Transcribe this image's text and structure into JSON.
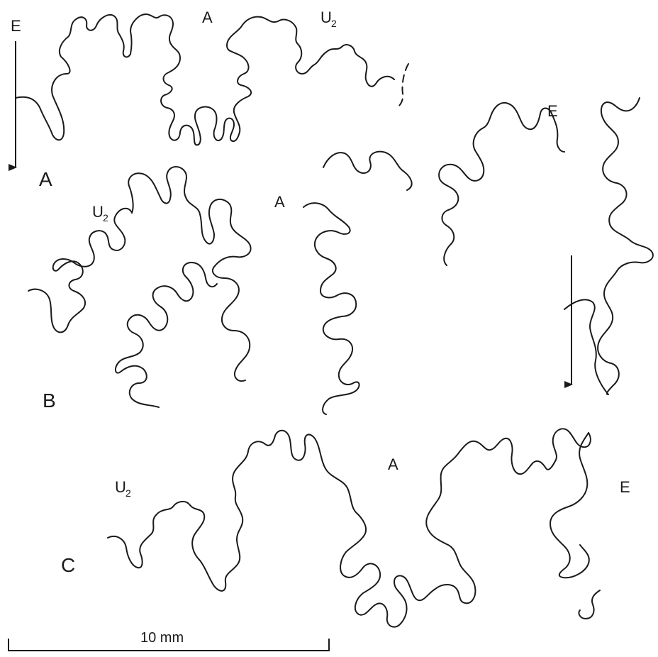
{
  "panels": [
    {
      "letter": "A",
      "labels": {
        "venter": "E",
        "lobe": "A",
        "umbilical": "U",
        "umbilical_sub": "2"
      }
    },
    {
      "letter": "B",
      "labels": {
        "venter": "E",
        "lobe": "A",
        "umbilical": "U",
        "umbilical_sub": "2"
      }
    },
    {
      "letter": "C",
      "labels": {
        "venter": "E",
        "lobe": "A",
        "umbilical": "U",
        "umbilical_sub": "2"
      }
    }
  ],
  "scale_bar": {
    "label": "10 mm"
  },
  "colors": {
    "line": "#1a1a1a",
    "background": "#ffffff"
  }
}
